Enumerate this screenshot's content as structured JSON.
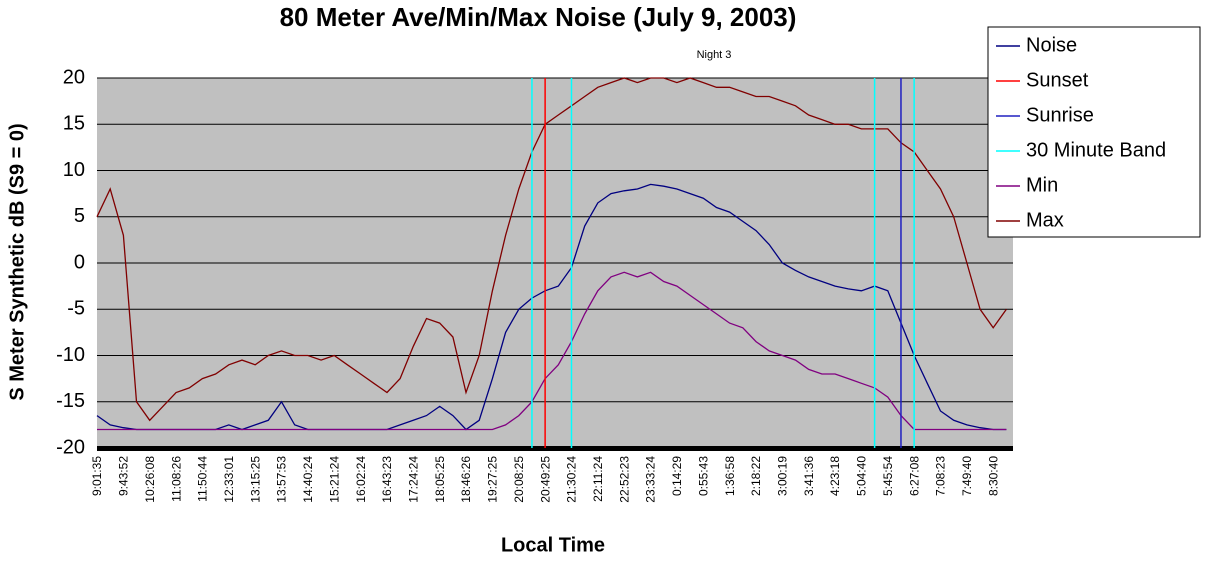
{
  "chart_data": {
    "type": "line",
    "title": "80 Meter Ave/Min/Max Noise (July 9, 2003)",
    "subtitle": "Night 3",
    "x_label": "Local Time",
    "y_label": "S Meter Synthetic dB (S9 = 0)",
    "categories": [
      "9:01:35",
      null,
      "9:43:52",
      null,
      "10:26:08",
      null,
      "11:08:26",
      null,
      "11:50:44",
      null,
      "12:33:01",
      null,
      "13:15:25",
      null,
      "13:57:53",
      null,
      "14:40:24",
      null,
      "15:21:24",
      null,
      "16:02:24",
      null,
      "16:43:23",
      null,
      "17:24:24",
      null,
      "18:05:25",
      null,
      "18:46:26",
      null,
      "19:27:25",
      null,
      "20:08:25",
      null,
      "20:49:25",
      null,
      "21:30:24",
      null,
      "22:11:24",
      null,
      "22:52:23",
      null,
      "23:33:24",
      null,
      "0:14:29",
      null,
      "0:55:43",
      null,
      "1:36:58",
      null,
      "2:18:22",
      null,
      "3:00:19",
      null,
      "3:41:36",
      null,
      "4:23:18",
      null,
      "5:04:40",
      null,
      "5:45:54",
      null,
      "6:27:08",
      null,
      "7:08:23",
      null,
      "7:49:40",
      null,
      "8:30:40",
      null
    ],
    "ylim": [
      -20,
      20
    ],
    "yticks": [
      -20,
      -15,
      -10,
      -5,
      0,
      5,
      10,
      15,
      20
    ],
    "grid": true,
    "legend": "right-top",
    "series": [
      {
        "name": "Noise",
        "color": "#000080",
        "mark": "line",
        "values": [
          -16.5,
          -17.5,
          -17.8,
          -18,
          -18,
          -18,
          -18,
          -18,
          -18,
          -18,
          -17.5,
          -18,
          -17.5,
          -17,
          -15,
          -17.5,
          -18,
          -18,
          -18,
          -18,
          -18,
          -18,
          -18,
          -17.5,
          -17,
          -16.5,
          -15.5,
          -16.5,
          -18,
          -17,
          -12.5,
          -7.5,
          -5,
          -3.8,
          -3,
          -2.5,
          -0.5,
          4,
          6.5,
          7.5,
          7.8,
          8,
          8.5,
          8.3,
          8,
          7.5,
          7,
          6,
          5.5,
          4.5,
          3.5,
          2,
          0,
          -0.8,
          -1.5,
          -2,
          -2.5,
          -2.8,
          -3,
          -2.5,
          -3,
          -6.5,
          -10,
          -13,
          -16,
          -17,
          -17.5,
          -17.8,
          -18,
          -18
        ]
      },
      {
        "name": "Sunset",
        "color": "#ff0000",
        "mark": "vline",
        "values": [
          null,
          null,
          null,
          null,
          null,
          null,
          null,
          null,
          null,
          null,
          null,
          null,
          null,
          null,
          null,
          null,
          null,
          null,
          null,
          null,
          null,
          null,
          null,
          null,
          null,
          null,
          null,
          null,
          null,
          null,
          null,
          null,
          null,
          null,
          20,
          null,
          null,
          null,
          null,
          null,
          null,
          null,
          null,
          null,
          null,
          null,
          null,
          null,
          null,
          null,
          null,
          null,
          null,
          null,
          null,
          null,
          null,
          null,
          null,
          null,
          null,
          null,
          null,
          null,
          null,
          null,
          null,
          null,
          null,
          null
        ]
      },
      {
        "name": "Sunrise",
        "color": "#2020c0",
        "mark": "vline",
        "values": [
          null,
          null,
          null,
          null,
          null,
          null,
          null,
          null,
          null,
          null,
          null,
          null,
          null,
          null,
          null,
          null,
          null,
          null,
          null,
          null,
          null,
          null,
          null,
          null,
          null,
          null,
          null,
          null,
          null,
          null,
          null,
          null,
          null,
          null,
          null,
          null,
          null,
          null,
          null,
          null,
          null,
          null,
          null,
          null,
          null,
          null,
          null,
          null,
          null,
          null,
          null,
          null,
          null,
          null,
          null,
          null,
          null,
          null,
          null,
          null,
          null,
          20,
          null,
          null,
          null,
          null,
          null,
          null,
          null,
          null
        ]
      },
      {
        "name": "30 Minute Band",
        "color": "#00ffff",
        "mark": "vline",
        "values": [
          null,
          null,
          null,
          null,
          null,
          null,
          null,
          null,
          null,
          null,
          null,
          null,
          null,
          null,
          null,
          null,
          null,
          null,
          null,
          null,
          null,
          null,
          null,
          null,
          null,
          null,
          null,
          null,
          null,
          null,
          null,
          null,
          null,
          20,
          null,
          null,
          20,
          null,
          null,
          null,
          null,
          null,
          null,
          null,
          null,
          null,
          null,
          null,
          null,
          null,
          null,
          null,
          null,
          null,
          null,
          null,
          null,
          null,
          null,
          20,
          null,
          null,
          20,
          null,
          null,
          null,
          null,
          null,
          null,
          null
        ]
      },
      {
        "name": "Min",
        "color": "#800080",
        "mark": "line",
        "values": [
          -18,
          -18,
          -18,
          -18,
          -18,
          -18,
          -18,
          -18,
          -18,
          -18,
          -18,
          -18,
          -18,
          -18,
          -18,
          -18,
          -18,
          -18,
          -18,
          -18,
          -18,
          -18,
          -18,
          -18,
          -18,
          -18,
          -18,
          -18,
          -18,
          -18,
          -18,
          -17.5,
          -16.5,
          -15,
          -12.5,
          -11,
          -8.5,
          -5.5,
          -3,
          -1.5,
          -1,
          -1.5,
          -1,
          -2,
          -2.5,
          -3.5,
          -4.5,
          -5.5,
          -6.5,
          -7,
          -8.5,
          -9.5,
          -10,
          -10.5,
          -11.5,
          -12,
          -12,
          -12.5,
          -13,
          -13.5,
          -14.5,
          -16.5,
          -18,
          -18,
          -18,
          -18,
          -18,
          -18,
          -18,
          -18
        ]
      },
      {
        "name": "Max",
        "color": "#800000",
        "mark": "line",
        "values": [
          5,
          8,
          3,
          -15,
          -17,
          -15.5,
          -14,
          -13.5,
          -12.5,
          -12,
          -11,
          -10.5,
          -11,
          -10,
          -9.5,
          -10,
          -10,
          -10.5,
          -10,
          -11,
          -12,
          -13,
          -14,
          -12.5,
          -9,
          -6,
          -6.5,
          -8,
          -14,
          -10,
          -3,
          3,
          8,
          12,
          15,
          16,
          17,
          18,
          19,
          19.5,
          20,
          19.5,
          20,
          20,
          19.5,
          20,
          19.5,
          19,
          19,
          18.5,
          18,
          18,
          17.5,
          17,
          16,
          15.5,
          15,
          15,
          14.5,
          14.5,
          14.5,
          13,
          12,
          10,
          8,
          5,
          0,
          -5,
          -7,
          -5
        ]
      }
    ]
  }
}
